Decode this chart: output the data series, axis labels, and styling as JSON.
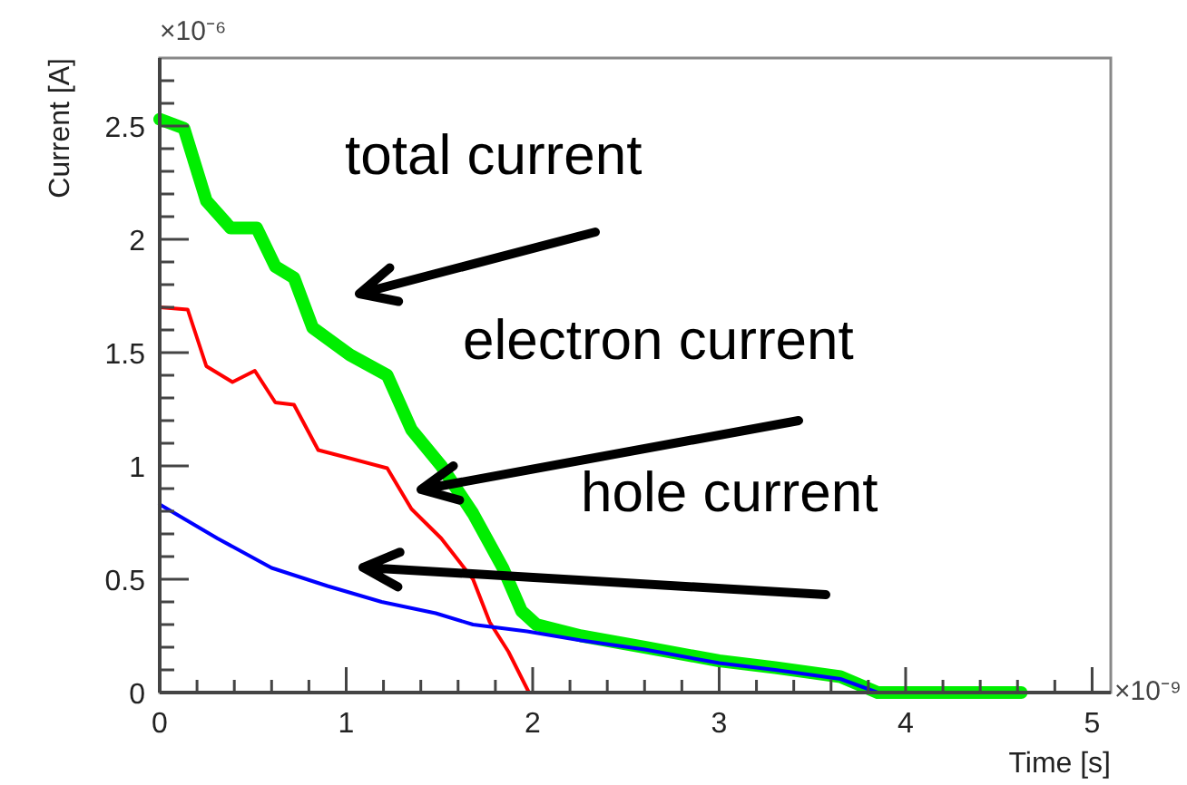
{
  "chart_data": {
    "type": "line",
    "xlabel": "Time [s]",
    "ylabel": "Current [A]",
    "annotations": [
      "×10⁻⁶",
      "×10⁻⁹",
      "total current",
      "electron current",
      "hole current"
    ],
    "xlim": [
      0,
      5.1
    ],
    "ylim": [
      0,
      2.8
    ],
    "xticks": [
      0,
      {
        "value": 0.2,
        "label": null
      },
      {
        "value": 0.4,
        "label": null
      },
      {
        "value": 0.6,
        "label": null
      },
      {
        "value": 0.8,
        "label": null
      },
      1,
      {
        "value": 1.2,
        "label": null
      },
      {
        "value": 1.4,
        "label": null
      },
      {
        "value": 1.6,
        "label": null
      },
      {
        "value": 1.8,
        "label": null
      },
      2,
      {
        "value": 2.2,
        "label": null
      },
      {
        "value": 2.4,
        "label": null
      },
      {
        "value": 2.6,
        "label": null
      },
      {
        "value": 2.8,
        "label": null
      },
      3,
      {
        "value": 3.2,
        "label": null
      },
      {
        "value": 3.4,
        "label": null
      },
      {
        "value": 3.6,
        "label": null
      },
      {
        "value": 3.8,
        "label": null
      },
      4,
      {
        "value": 4.2,
        "label": null
      },
      {
        "value": 4.4,
        "label": null
      },
      {
        "value": 4.6,
        "label": null
      },
      {
        "value": 4.8,
        "label": null
      },
      5
    ],
    "yticks": [
      0,
      {
        "value": 0.1,
        "label": null
      },
      {
        "value": 0.2,
        "label": null
      },
      {
        "value": 0.3,
        "label": null
      },
      {
        "value": 0.4,
        "label": null
      },
      0.5,
      {
        "value": 0.6,
        "label": null
      },
      {
        "value": 0.7,
        "label": null
      },
      {
        "value": 0.8,
        "label": null
      },
      {
        "value": 0.9,
        "label": null
      },
      1,
      {
        "value": 1.1,
        "label": null
      },
      {
        "value": 1.2,
        "label": null
      },
      {
        "value": 1.3,
        "label": null
      },
      {
        "value": 1.4,
        "label": null
      },
      1.5,
      {
        "value": 1.6,
        "label": null
      },
      {
        "value": 1.7,
        "label": null
      },
      {
        "value": 1.8,
        "label": null
      },
      {
        "value": 1.9,
        "label": null
      },
      2,
      {
        "value": 2.1,
        "label": null
      },
      {
        "value": 2.2,
        "label": null
      },
      {
        "value": 2.3,
        "label": null
      },
      {
        "value": 2.4,
        "label": null
      },
      2.5,
      {
        "value": 2.6,
        "label": null
      },
      {
        "value": 2.7,
        "label": null
      }
    ],
    "series": [
      {
        "color": "#00ee00",
        "x": [
          0,
          0.13,
          0.25,
          0.38,
          0.52,
          0.62,
          0.72,
          0.82,
          1.02,
          1.22,
          1.35,
          1.51,
          1.68,
          1.84,
          1.94,
          2.02,
          2.26,
          2.6,
          3.0,
          3.3,
          3.65,
          3.85,
          4.62
        ],
        "values": [
          2.53,
          2.49,
          2.17,
          2.05,
          2.05,
          1.88,
          1.83,
          1.61,
          1.49,
          1.4,
          1.16,
          1.0,
          0.79,
          0.55,
          0.36,
          0.3,
          0.25,
          0.2,
          0.14,
          0.11,
          0.07,
          0,
          0
        ]
      },
      {
        "color": "#ff0000",
        "x": [
          0,
          0.15,
          0.25,
          0.39,
          0.51,
          0.62,
          0.72,
          0.85,
          0.99,
          1.22,
          1.35,
          1.51,
          1.68,
          1.77,
          1.87,
          1.98,
          4.62
        ],
        "values": [
          1.7,
          1.69,
          1.44,
          1.37,
          1.42,
          1.28,
          1.27,
          1.07,
          1.04,
          0.99,
          0.81,
          0.68,
          0.5,
          0.31,
          0.18,
          0,
          0
        ]
      },
      {
        "color": "#0000ff",
        "x": [
          0,
          0.31,
          0.6,
          0.9,
          1.19,
          1.48,
          1.68,
          1.97,
          2.26,
          2.6,
          3.0,
          3.3,
          3.65,
          3.85,
          4.62
        ],
        "values": [
          0.83,
          0.68,
          0.55,
          0.47,
          0.4,
          0.35,
          0.3,
          0.27,
          0.23,
          0.19,
          0.13,
          0.1,
          0.06,
          0,
          0
        ]
      }
    ]
  }
}
